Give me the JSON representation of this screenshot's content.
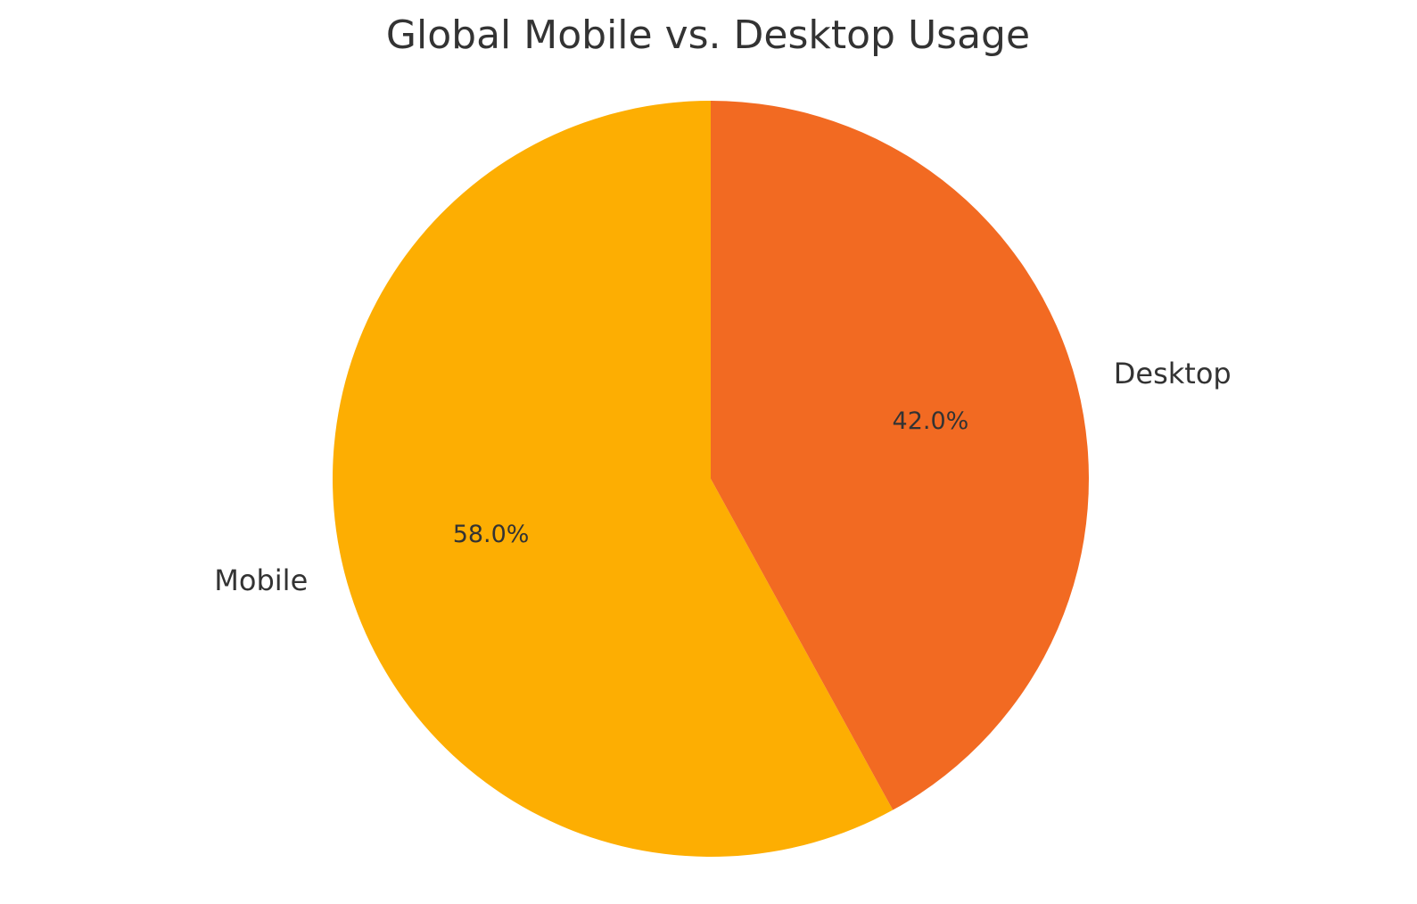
{
  "chart_data": {
    "type": "pie",
    "title": "Global Mobile vs. Desktop Usage",
    "categories": [
      "Mobile",
      "Desktop"
    ],
    "values": [
      58.0,
      42.0
    ],
    "percent_labels": [
      "58.0%",
      "42.0%"
    ],
    "colors": [
      "#FDAE02",
      "#F26A22"
    ],
    "start_angle_deg": 90,
    "direction": "counterclockwise",
    "legend": "none"
  }
}
